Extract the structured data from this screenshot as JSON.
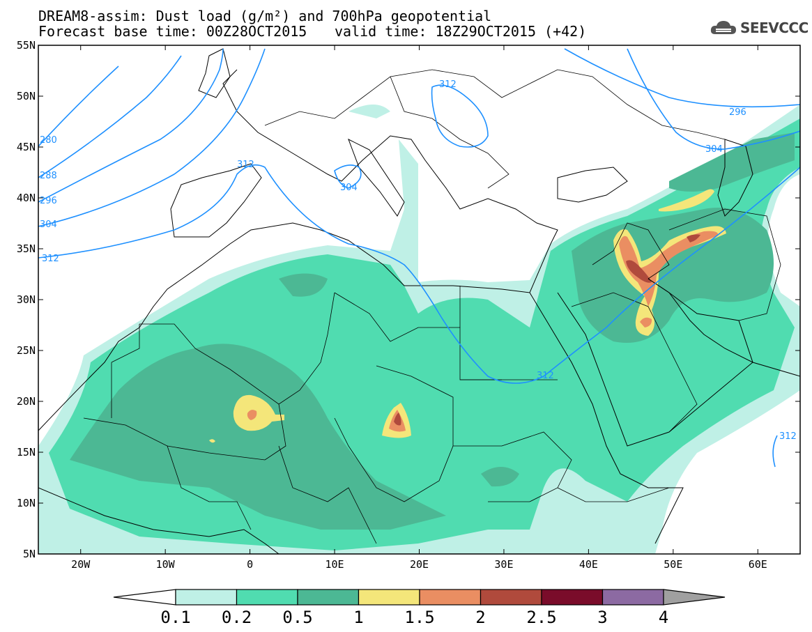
{
  "header": {
    "title": "DREAM8-assim: Dust load (g/m²) and 700hPa geopotential",
    "base_time": "Forecast base time: 00Z28OCT2015",
    "valid_time": "valid time: 18Z29OCT2015 (+42)"
  },
  "logo": {
    "icon": "cloud-logo-icon",
    "text": "SEEVCCC"
  },
  "map": {
    "lon_ticks": [
      "20W",
      "10W",
      "0",
      "10E",
      "20E",
      "30E",
      "40E",
      "50E",
      "60E"
    ],
    "lat_ticks": [
      "55N",
      "50N",
      "45N",
      "40N",
      "35N",
      "30N",
      "25N",
      "20N",
      "15N",
      "10N",
      "5N"
    ],
    "lon_range": [
      -25,
      65
    ],
    "lat_range": [
      5,
      55
    ],
    "contour_labels": [
      "280",
      "288",
      "296",
      "304",
      "312",
      "312",
      "304",
      "312",
      "304",
      "296",
      "312",
      "312"
    ]
  },
  "colorbar": {
    "labels": [
      "0.1",
      "0.2",
      "0.5",
      "1",
      "1.5",
      "2",
      "2.5",
      "3",
      "4"
    ],
    "colors": [
      "#bff0e6",
      "#50dcb0",
      "#4cb894",
      "#f4e67a",
      "#ea8e62",
      "#b04a3c",
      "#7a0c2a",
      "#8c6aa2",
      "#a0a0a0"
    ]
  }
}
